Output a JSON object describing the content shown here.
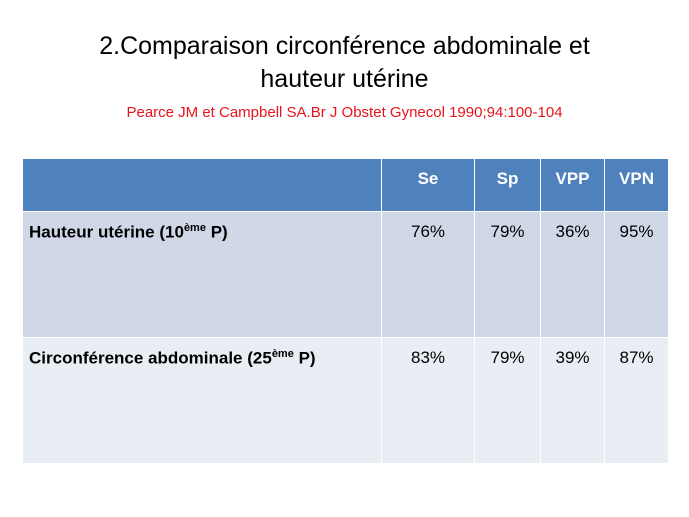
{
  "title": {
    "lines": [
      "2.Comparaison circonférence abdominale et",
      "hauteur utérine"
    ],
    "reference": "Pearce JM et Campbell SA.Br J Obstet Gynecol 1990;94:100-104"
  },
  "table": {
    "header": [
      "Se",
      "Sp",
      "VPP",
      "VPN"
    ],
    "rows": [
      {
        "label": [
          "Hauteur utérine (10",
          "ème",
          " P)"
        ],
        "cells": [
          "76%",
          "79%",
          "36%",
          "95%"
        ]
      },
      {
        "label": [
          "Circonférence abdominale (25",
          "ème",
          " P)"
        ],
        "cells": [
          "83%",
          "79%",
          "39%",
          "87%"
        ]
      }
    ]
  }
}
